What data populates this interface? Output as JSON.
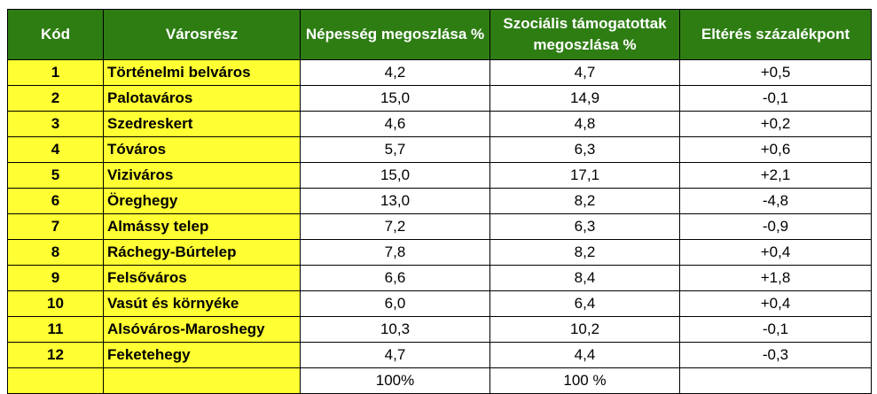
{
  "table": {
    "headers": {
      "code": "Kód",
      "district": "Városrész",
      "population": "Népesség megoszlása %",
      "social": "Szociális támogatottak megoszlása %",
      "difference": "Eltérés százalékpont"
    },
    "rows": [
      {
        "code": "1",
        "district": "Történelmi belváros",
        "population": "4,2",
        "social": "4,7",
        "difference": "+0,5"
      },
      {
        "code": "2",
        "district": "Palotaváros",
        "population": "15,0",
        "social": "14,9",
        "difference": "-0,1"
      },
      {
        "code": "3",
        "district": "Szedreskert",
        "population": "4,6",
        "social": "4,8",
        "difference": "+0,2"
      },
      {
        "code": "4",
        "district": "Tóváros",
        "population": "5,7",
        "social": "6,3",
        "difference": "+0,6"
      },
      {
        "code": "5",
        "district": "Viziváros",
        "population": "15,0",
        "social": "17,1",
        "difference": "+2,1"
      },
      {
        "code": "6",
        "district": "Öreghegy",
        "population": "13,0",
        "social": "8,2",
        "difference": "-4,8"
      },
      {
        "code": "7",
        "district": "Almássy telep",
        "population": "7,2",
        "social": "6,3",
        "difference": "-0,9"
      },
      {
        "code": "8",
        "district": "Ráchegy-Búrtelep",
        "population": "7,8",
        "social": "8,2",
        "difference": "+0,4"
      },
      {
        "code": "9",
        "district": "Felsőváros",
        "population": "6,6",
        "social": "8,4",
        "difference": "+1,8"
      },
      {
        "code": "10",
        "district": "Vasút és környéke",
        "population": "6,0",
        "social": "6,4",
        "difference": "+0,4"
      },
      {
        "code": "11",
        "district": "Alsóváros-Maroshegy",
        "population": "10,3",
        "social": "10,2",
        "difference": "-0,1"
      },
      {
        "code": "12",
        "district": "Feketehegy",
        "population": "4,7",
        "social": "4,4",
        "difference": "-0,3"
      }
    ],
    "totals": {
      "code": "",
      "district": "",
      "population": "100%",
      "social": "100 %",
      "difference": ""
    }
  },
  "colors": {
    "header_bg": "#2e7d13",
    "header_text": "#ffffff",
    "highlight_bg": "#ffff33",
    "border": "#000000"
  }
}
